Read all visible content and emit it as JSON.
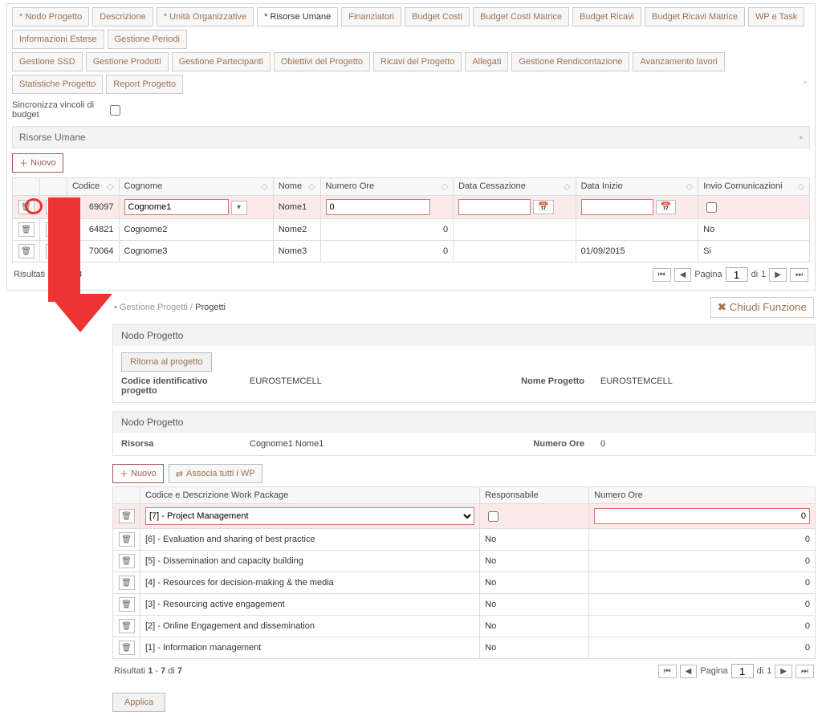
{
  "colors": {
    "accent": "#a85454",
    "highlight": "#fbeaea",
    "border": "#ddd",
    "mark": "#e33"
  },
  "tabsRow1": [
    "* Nodo Progetto",
    "Descrizione",
    "* Unità Organizzative",
    "* Risorse Umane",
    "Finanziatori",
    "Budget Costi",
    "Budget Costi Matrice",
    "Budget Ricavi",
    "Budget Ricavi Matrice",
    "WP e Task",
    "Informazioni Estese",
    "Gestione Periodi"
  ],
  "activeTabRow1": 3,
  "tabsRow2": [
    "Gestione SSD",
    "Gestione Prodotti",
    "Gestione Partecipanti",
    "Obiettivi del Progetto",
    "Ricavi del Progetto",
    "Allegati",
    "Gestione Rendicontazione",
    "Avanzamento lavori",
    "Statistiche Progetto",
    "Report Progetto"
  ],
  "syncLabel": "Sincronizza vincoli di budget",
  "sectionRU": "Risorse Umane",
  "nuovoLabel": "Nuovo",
  "ruColumns": [
    "Codice",
    "Cognome",
    "Nome",
    "Numero Ore",
    "Data Cessazione",
    "Data Inizio",
    "Invio Comunicazioni"
  ],
  "ruRows": [
    {
      "codice": "69097",
      "cognome": "Cognome1",
      "nome": "Nome1",
      "ore": "0",
      "cess": "",
      "inizio": "",
      "invio": "",
      "edit": true
    },
    {
      "codice": "64821",
      "cognome": "Cognome2",
      "nome": "Nome2",
      "ore": "0",
      "cess": "",
      "inizio": "",
      "invio": "No",
      "edit": false
    },
    {
      "codice": "70064",
      "cognome": "Cognome3",
      "nome": "Nome3",
      "ore": "0",
      "cess": "",
      "inizio": "01/09/2015",
      "invio": "Si",
      "edit": false
    }
  ],
  "pager1": {
    "results": "Risultati",
    "rangeA": "1",
    "rangeB": "3",
    "di": "di",
    "total": "3",
    "pagina": "Pagina",
    "page": "1",
    "pages": "1"
  },
  "breadcrumb": {
    "root": "Gestione Progetti",
    "sep": "/",
    "current": "Progetti"
  },
  "chiudi": "Chiudi Funzione",
  "blk1": {
    "title": "Nodo Progetto",
    "ritorna": "Ritorna al progetto",
    "codiceLabel": "Codice identificativo progetto",
    "codiceVal": "EUROSTEMCELL",
    "nomeLabel": "Nome Progetto",
    "nomeVal": "EUROSTEMCELL"
  },
  "blk2": {
    "title": "Nodo Progetto",
    "risorsaLabel": "Risorsa",
    "risorsaVal": "Cognome1 Nome1",
    "oreLabel": "Numero Ore",
    "oreVal": "0"
  },
  "assoc": "Associa tutti i WP",
  "wpColumns": [
    "Codice e Descrizione Work Package",
    "Responsabile",
    "Numero Ore"
  ],
  "wpRows": [
    {
      "desc": "[7] - Project Management",
      "resp": "",
      "ore": "0",
      "edit": true
    },
    {
      "desc": "[6] - Evaluation and sharing of best practice",
      "resp": "No",
      "ore": "0",
      "edit": false
    },
    {
      "desc": "[5] - Dissemination and capacity building",
      "resp": "No",
      "ore": "0",
      "edit": false
    },
    {
      "desc": "[4] - Resources for decision-making & the media",
      "resp": "No",
      "ore": "0",
      "edit": false
    },
    {
      "desc": "[3] - Resourcing active engagement",
      "resp": "No",
      "ore": "0",
      "edit": false
    },
    {
      "desc": "[2] - Online Engagement and dissemination",
      "resp": "No",
      "ore": "0",
      "edit": false
    },
    {
      "desc": "[1] - Information management",
      "resp": "No",
      "ore": "0",
      "edit": false
    }
  ],
  "pager2": {
    "results": "Risultati",
    "rangeA": "1",
    "rangeB": "7",
    "di": "di",
    "total": "7",
    "pagina": "Pagina",
    "page": "1",
    "pages": "1"
  },
  "applica": "Applica"
}
